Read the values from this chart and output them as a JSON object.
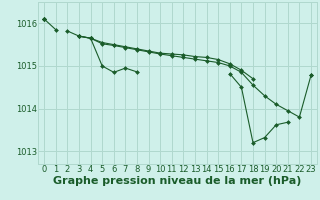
{
  "title": "Graphe pression niveau de la mer (hPa)",
  "bg_color": "#cff0ea",
  "grid_color": "#b0d8ce",
  "line_color": "#1a5c2a",
  "xlim": [
    -0.5,
    23.5
  ],
  "ylim": [
    1012.7,
    1016.5
  ],
  "yticks": [
    1013,
    1014,
    1015,
    1016
  ],
  "xticks": [
    0,
    1,
    2,
    3,
    4,
    5,
    6,
    7,
    8,
    9,
    10,
    11,
    12,
    13,
    14,
    15,
    16,
    17,
    18,
    19,
    20,
    21,
    22,
    23
  ],
  "series": [
    [
      1016.1,
      1015.85,
      null,
      1015.7,
      1015.65,
      1015.55,
      1015.5,
      1015.45,
      1015.4,
      1015.35,
      1015.3,
      1015.28,
      1015.26,
      1015.22,
      1015.2,
      1015.15,
      1015.05,
      1014.9,
      1014.7,
      null,
      null,
      null,
      null,
      null
    ],
    [
      1016.1,
      null,
      null,
      1015.7,
      1015.65,
      1015.0,
      1014.85,
      1014.95,
      1014.86,
      null,
      null,
      null,
      null,
      null,
      null,
      null,
      null,
      null,
      null,
      null,
      null,
      null,
      null,
      null
    ],
    [
      1016.1,
      null,
      1015.82,
      1015.7,
      1015.65,
      1015.52,
      1015.48,
      1015.43,
      1015.38,
      1015.33,
      1015.28,
      1015.24,
      1015.2,
      1015.16,
      1015.12,
      1015.08,
      1015.0,
      1014.85,
      1014.55,
      1014.3,
      1014.1,
      1013.95,
      1013.8,
      1014.78
    ],
    [
      1016.1,
      null,
      null,
      null,
      1015.65,
      null,
      null,
      null,
      null,
      null,
      null,
      null,
      null,
      null,
      null,
      null,
      1014.82,
      1014.5,
      1013.2,
      1013.32,
      1013.62,
      1013.68,
      null,
      1014.78
    ]
  ],
  "title_fontsize": 8,
  "tick_fontsize": 6
}
